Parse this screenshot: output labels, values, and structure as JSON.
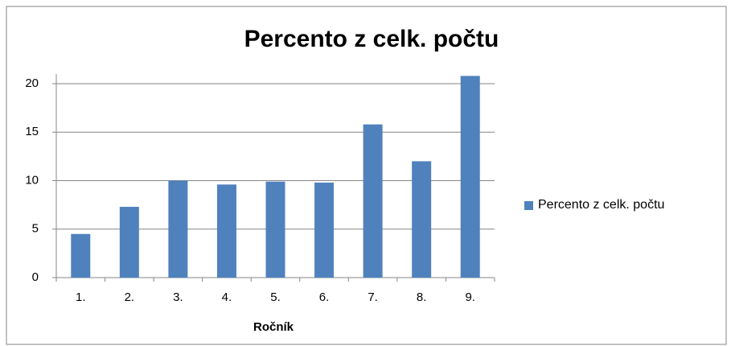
{
  "chart_data": {
    "type": "bar",
    "title": "Percento z celk. počtu",
    "x_label": "Ročník",
    "categories": [
      "1.",
      "2.",
      "3.",
      "4.",
      "5.",
      "6.",
      "7.",
      "8.",
      "9."
    ],
    "series": [
      {
        "name": "Percento z celk. počtu",
        "color": "#4f81bd",
        "values": [
          4.5,
          7.3,
          10.0,
          9.6,
          9.9,
          9.8,
          15.8,
          12.0,
          20.8
        ]
      }
    ],
    "ylim": [
      0,
      21
    ],
    "yticks": [
      0,
      5,
      10,
      15,
      20
    ],
    "grid": true,
    "legend": "right"
  }
}
